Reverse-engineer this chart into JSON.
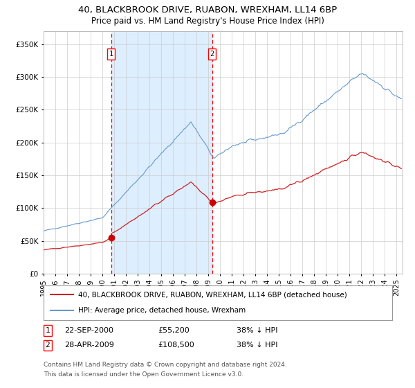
{
  "title_line1": "40, BLACKBROOK DRIVE, RUABON, WREXHAM, LL14 6BP",
  "title_line2": "Price paid vs. HM Land Registry's House Price Index (HPI)",
  "legend_entry1": "40, BLACKBROOK DRIVE, RUABON, WREXHAM, LL14 6BP (detached house)",
  "legend_entry2": "HPI: Average price, detached house, Wrexham",
  "footnote_line1": "Contains HM Land Registry data © Crown copyright and database right 2024.",
  "footnote_line2": "This data is licensed under the Open Government Licence v3.0.",
  "t1_label": "1",
  "t1_date_str": "22-SEP-2000",
  "t1_price_str": "£55,200",
  "t1_pct_str": "38% ↓ HPI",
  "t1_year": 2000.73,
  "t1_price": 55200,
  "t2_label": "2",
  "t2_date_str": "28-APR-2009",
  "t2_price_str": "£108,500",
  "t2_pct_str": "38% ↓ HPI",
  "t2_year": 2009.32,
  "t2_price": 108500,
  "hpi_color": "#6699cc",
  "property_color": "#cc2222",
  "dot_color": "#cc0000",
  "background_color": "#ffffff",
  "shaded_region_color": "#ddeeff",
  "ylim": [
    0,
    370000
  ],
  "yticks": [
    0,
    50000,
    100000,
    150000,
    200000,
    250000,
    300000,
    350000
  ],
  "xlim": [
    1995.0,
    2025.5
  ],
  "xticks": [
    1995,
    1996,
    1997,
    1998,
    1999,
    2000,
    2001,
    2002,
    2003,
    2004,
    2005,
    2006,
    2007,
    2008,
    2009,
    2010,
    2011,
    2012,
    2013,
    2014,
    2015,
    2016,
    2017,
    2018,
    2019,
    2020,
    2021,
    2022,
    2023,
    2024,
    2025
  ]
}
